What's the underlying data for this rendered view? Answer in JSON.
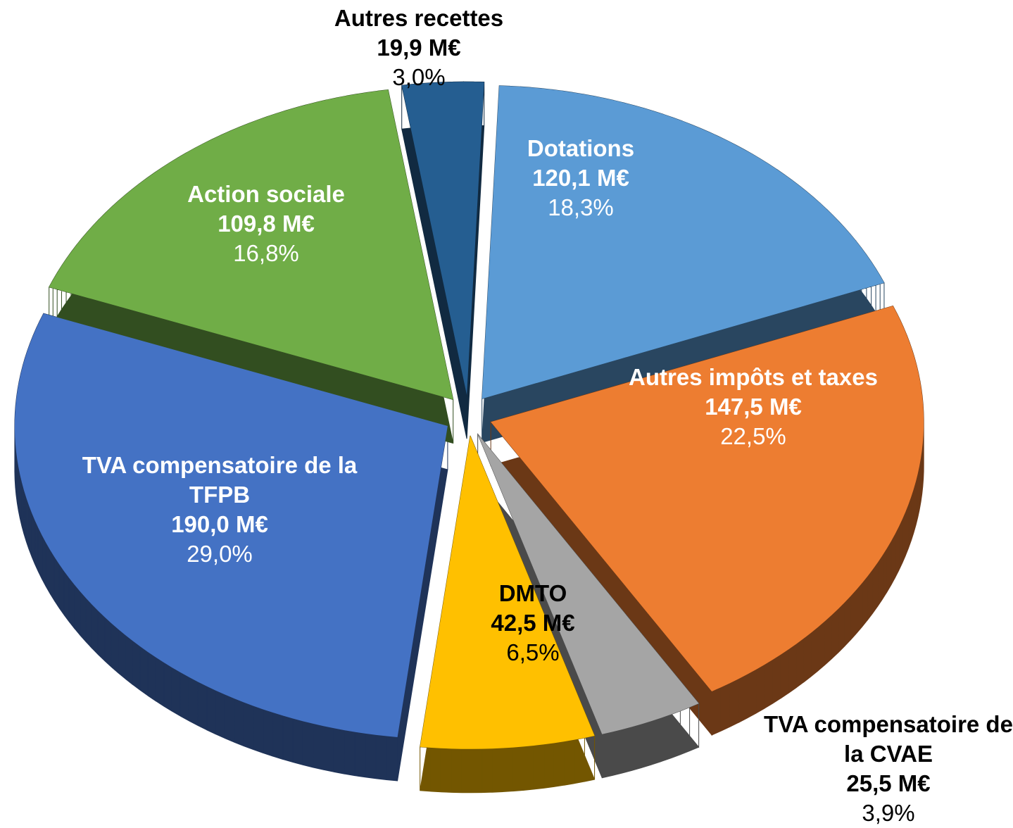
{
  "chart_data": {
    "type": "pie3d",
    "categories": [
      "Dotations",
      "Autres impôts et taxes",
      "TVA compensatoire de la CVAE",
      "DMTO",
      "TVA compensatoire de la TFPB",
      "Action sociale",
      "Autres recettes"
    ],
    "values": [
      120.1,
      147.5,
      25.5,
      42.5,
      190.0,
      109.8,
      19.9
    ],
    "value_labels": [
      "120,1 M€",
      "147,5 M€",
      "25,5 M€",
      "42,5 M€",
      "190,0 M€",
      "109,8 M€",
      "19,9 M€"
    ],
    "percents": [
      18.3,
      22.5,
      3.9,
      6.5,
      29.0,
      16.8,
      3.0
    ],
    "percent_labels": [
      "18,3%",
      "22,5%",
      "3,9%",
      "6,5%",
      "29,0%",
      "16,8%",
      "3,0%"
    ],
    "colors": [
      "#5b9bd5",
      "#ed7d31",
      "#a5a5a5",
      "#ffc000",
      "#4472c4",
      "#70ad47",
      "#255e91"
    ]
  }
}
